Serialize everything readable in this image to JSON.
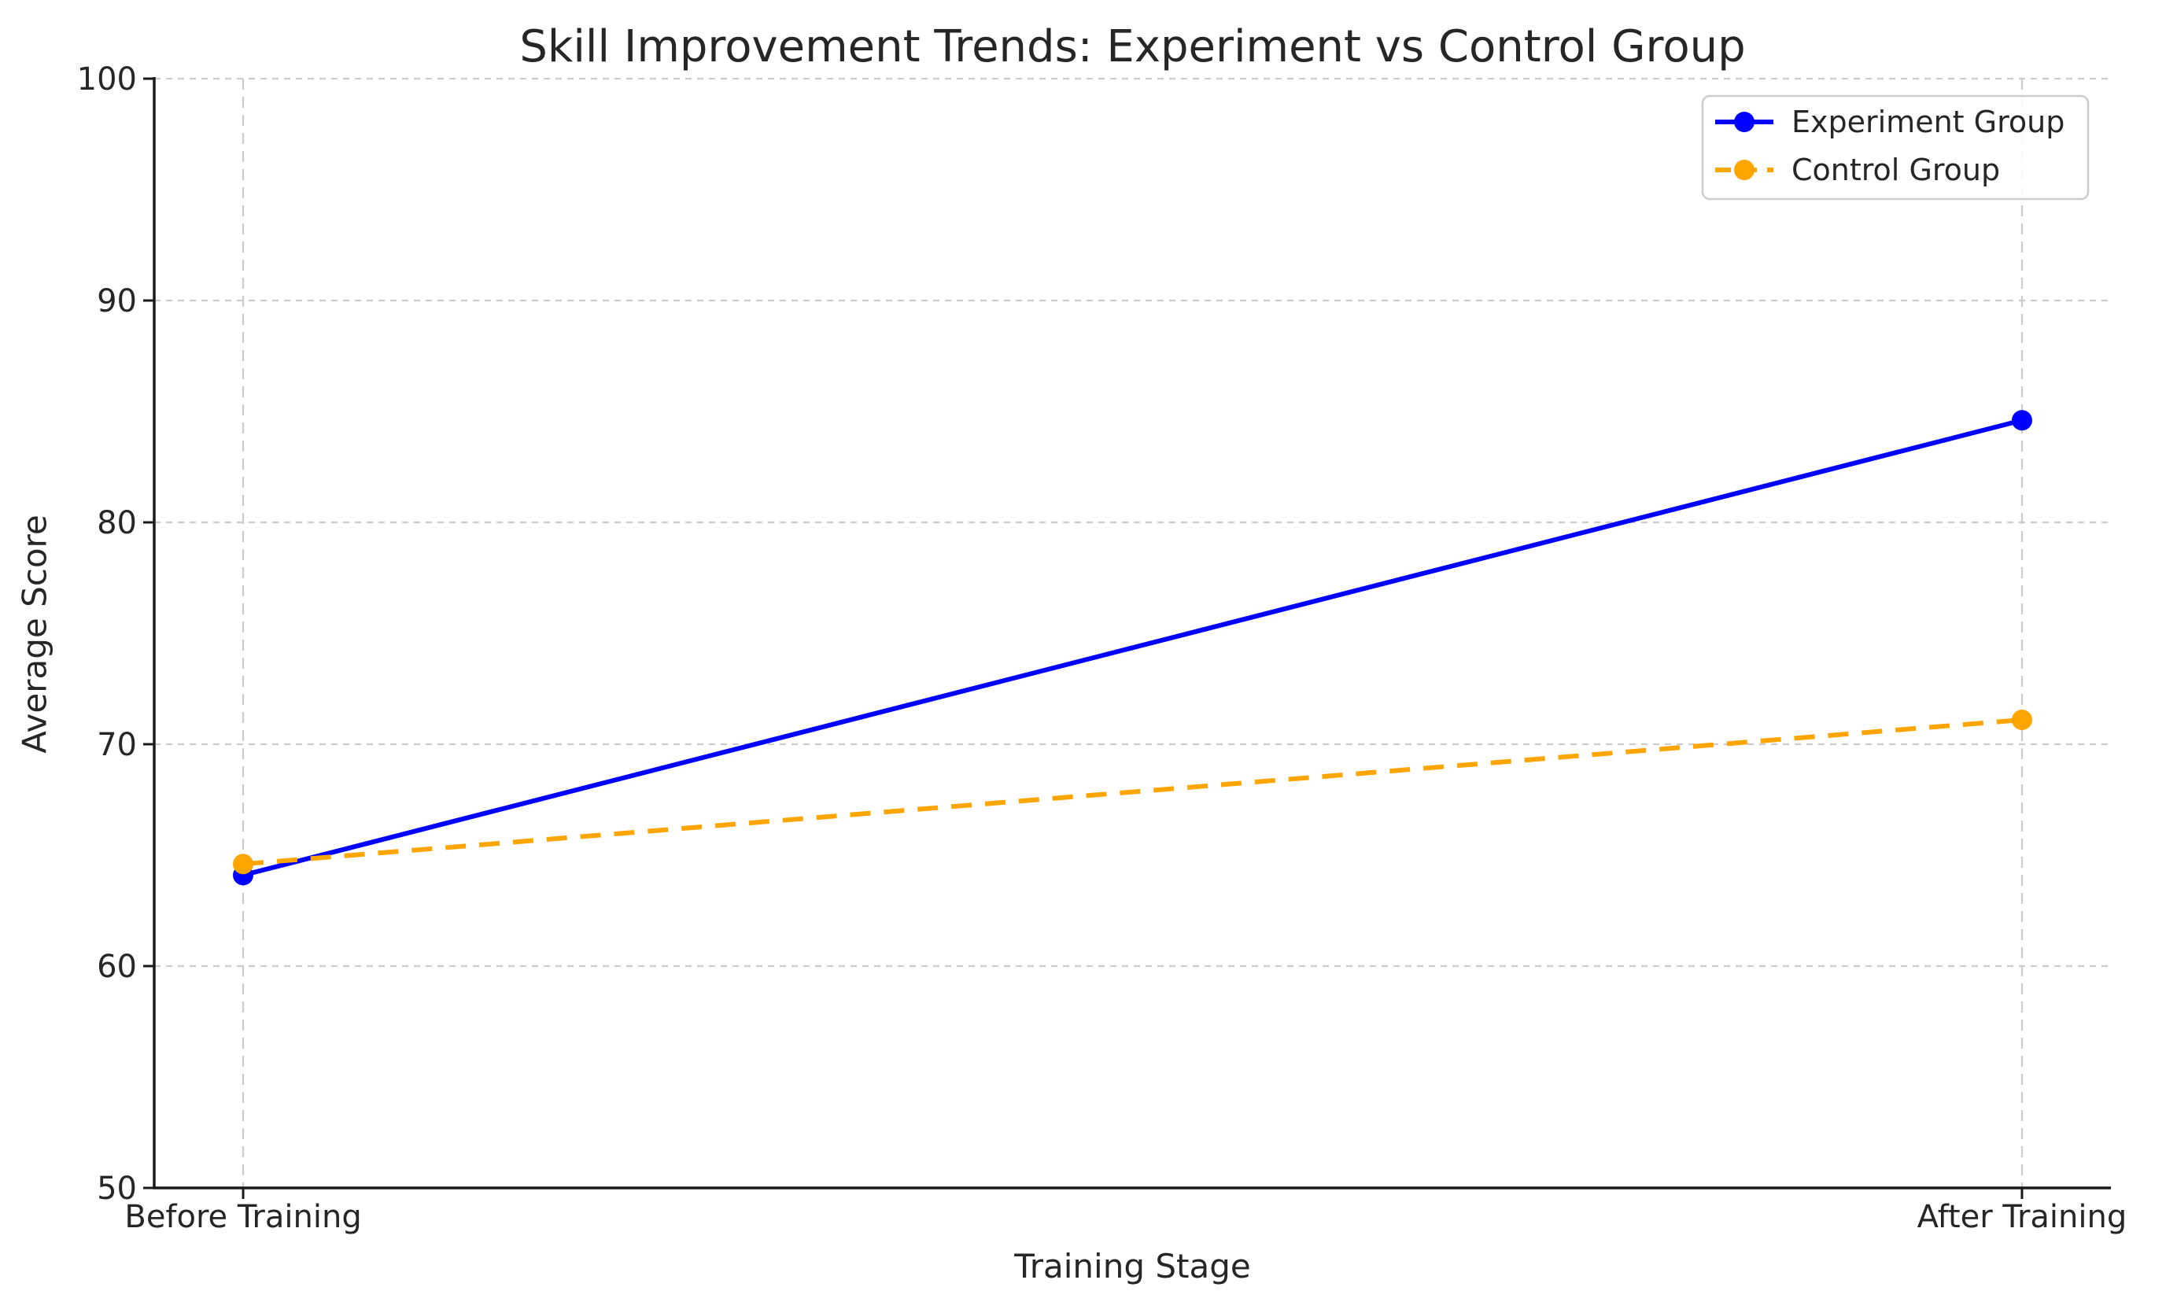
{
  "chart_data": {
    "type": "line",
    "title": "Skill Improvement Trends: Experiment vs Control Group",
    "xlabel": "Training Stage",
    "ylabel": "Average Score",
    "categories": [
      "Before Training",
      "After Training"
    ],
    "series": [
      {
        "name": "Experiment Group",
        "values": [
          64.1,
          84.6
        ],
        "color": "#0000ff",
        "line_style": "solid",
        "marker": "circle"
      },
      {
        "name": "Control Group",
        "values": [
          64.6,
          71.1
        ],
        "color": "#ffa500",
        "line_style": "dashed",
        "marker": "circle"
      }
    ],
    "ylim": [
      50,
      100
    ],
    "yticks": [
      50,
      60,
      70,
      80,
      90,
      100
    ],
    "ytick_labels": [
      "50",
      "60",
      "70",
      "80",
      "90",
      "100"
    ],
    "grid": "both",
    "grid_line_style": "dashed",
    "legend_position": "upper right",
    "colors": {
      "grid": "#cccccc",
      "spine": "#1a1a1a",
      "text": "#262626",
      "legend_border": "#cccccc",
      "background": "#ffffff"
    }
  }
}
